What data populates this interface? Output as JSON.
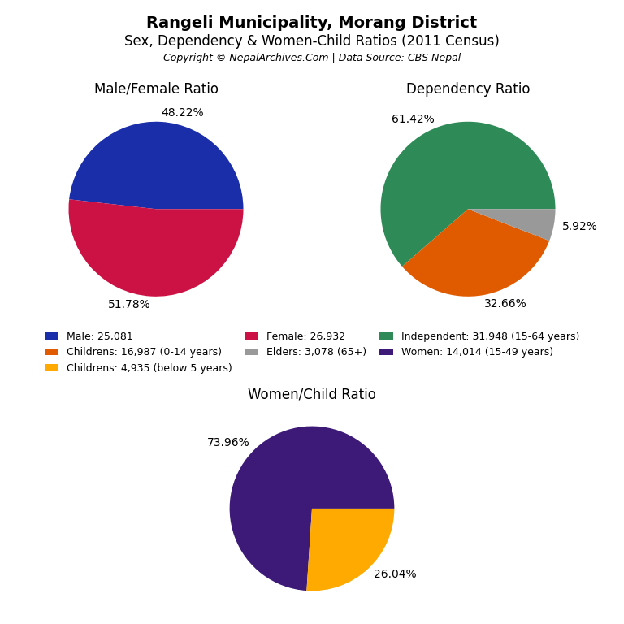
{
  "title": "Rangeli Municipality, Morang District",
  "subtitle": "Sex, Dependency & Women-Child Ratios (2011 Census)",
  "annotations": [
    "Copyright © NepalArchives.Com | Data Source: CBS Nepal"
  ],
  "chart_data": [
    {
      "type": "pie",
      "title": "Male/Female Ratio",
      "categories": [
        "Male: 25,081",
        "Female: 26,932"
      ],
      "values": [
        48.22,
        51.78
      ],
      "value_labels": [
        "48.22%",
        "51.78%"
      ],
      "colors": [
        "#1a2eaa",
        "#cc1144"
      ],
      "data_labels": true,
      "legend": "center"
    },
    {
      "type": "pie",
      "title": "Dependency Ratio",
      "categories": [
        "Independent: 31,948 (15-64 years)",
        "Childrens: 16,987 (0-14 years)",
        "Elders: 3,078 (65+)"
      ],
      "values": [
        61.42,
        32.66,
        5.92
      ],
      "value_labels": [
        "61.42%",
        "32.66%",
        "5.92%"
      ],
      "colors": [
        "#2e8b57",
        "#e05a00",
        "#999999"
      ],
      "data_labels": true,
      "legend": "center"
    },
    {
      "type": "pie",
      "title": "Women/Child Ratio",
      "categories": [
        "Women: 14,014 (15-49 years)",
        "Childrens: 4,935 (below 5 years)"
      ],
      "values": [
        73.96,
        26.04
      ],
      "value_labels": [
        "73.96%",
        "26.04%"
      ],
      "colors": [
        "#3d1a78",
        "#ffaa00"
      ],
      "data_labels": true,
      "legend": "center"
    }
  ]
}
